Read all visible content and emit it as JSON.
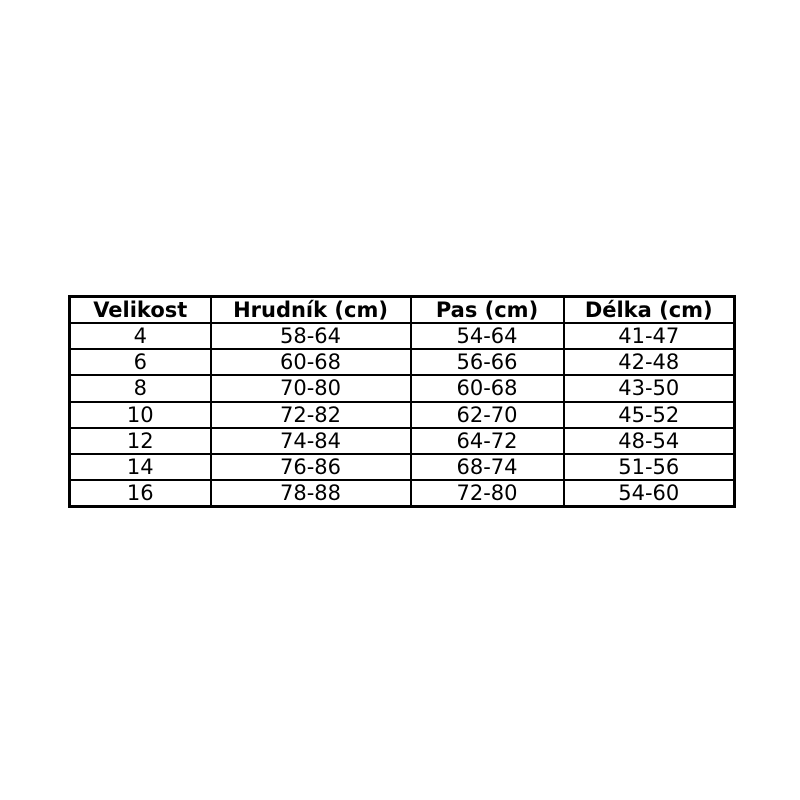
{
  "colors": {
    "background": "#ffffff",
    "border": "#000000",
    "text": "#000000"
  },
  "chart_data": {
    "type": "table",
    "columns": [
      "Velikost",
      "Hrudník (cm)",
      "Pas (cm)",
      "Délka (cm)"
    ],
    "rows": [
      [
        "4",
        "58-64",
        "54-64",
        "41-47"
      ],
      [
        "6",
        "60-68",
        "56-66",
        "42-48"
      ],
      [
        "8",
        "70-80",
        "60-68",
        "43-50"
      ],
      [
        "10",
        "72-82",
        "62-70",
        "45-52"
      ],
      [
        "12",
        "74-84",
        "64-72",
        "48-54"
      ],
      [
        "14",
        "76-86",
        "68-74",
        "51-56"
      ],
      [
        "16",
        "78-88",
        "72-80",
        "54-60"
      ]
    ]
  }
}
